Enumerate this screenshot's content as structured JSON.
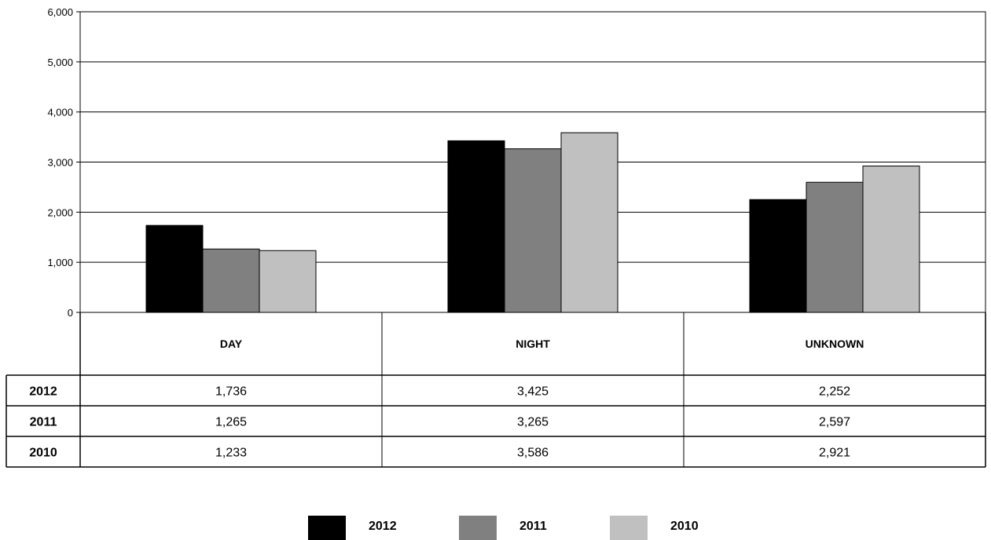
{
  "chart_data": {
    "type": "bar",
    "categories": [
      "DAY",
      "NIGHT",
      "UNKNOWN"
    ],
    "series": [
      {
        "name": "2012",
        "color": "#000000",
        "values": [
          1736,
          3425,
          2252
        ],
        "labels": [
          "1,736",
          "3,425",
          "2,252"
        ]
      },
      {
        "name": "2011",
        "color": "#808080",
        "values": [
          1265,
          3265,
          2597
        ],
        "labels": [
          "1,265",
          "3,265",
          "2,597"
        ]
      },
      {
        "name": "2010",
        "color": "#c0c0c0",
        "values": [
          1233,
          3586,
          2921
        ],
        "labels": [
          "1,233",
          "3,586",
          "2,921"
        ]
      }
    ],
    "ylim": [
      0,
      6000
    ],
    "yticks": [
      0,
      1000,
      2000,
      3000,
      4000,
      5000,
      6000
    ],
    "ytick_labels": [
      "0",
      "1,000",
      "2,000",
      "3,000",
      "4,000",
      "5,000",
      "6,000"
    ],
    "grid": true,
    "legend_position": "bottom",
    "data_table": true
  }
}
